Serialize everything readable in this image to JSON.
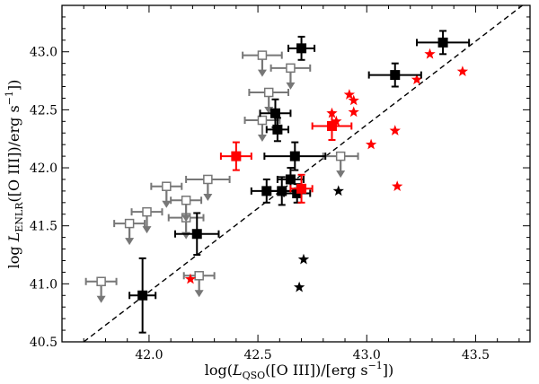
{
  "chart_data": {
    "type": "scatter",
    "title": "",
    "xlabel": {
      "prefix": "log(",
      "symbol": "L",
      "sub": "QSO",
      "mid": "([O III])/[erg s",
      "sup": "−1",
      "suffix": "])"
    },
    "ylabel": {
      "prefix": "log ",
      "symbol": "L",
      "sub": "ENLR",
      "mid": "([O III])/erg s",
      "sup": "−1",
      "suffix": "])"
    },
    "xlim": [
      41.6,
      43.75
    ],
    "ylim": [
      40.5,
      43.4
    ],
    "xticks": [
      42.0,
      42.5,
      43.0,
      43.5
    ],
    "xtick_labels": [
      "42.0",
      "42.5",
      "43.0",
      "43.5"
    ],
    "yticks": [
      40.5,
      41.0,
      41.5,
      42.0,
      42.5,
      43.0
    ],
    "ytick_labels": [
      "40.5",
      "41.0",
      "41.5",
      "42.0",
      "42.5",
      "43.0"
    ],
    "colors": {
      "detection": "#000000",
      "upper_limit": "#777777",
      "red": "#ff0000"
    },
    "one_to_one_line": {
      "style": "dashed",
      "x": [
        41.7,
        43.75
      ],
      "y": [
        40.5,
        43.45
      ]
    },
    "series": [
      {
        "name": "Detections (black squares)",
        "marker": "square-filled",
        "color": "#000000",
        "points": [
          {
            "x": 41.97,
            "y": 40.9,
            "xerr": 0.06,
            "yerr": 0.32
          },
          {
            "x": 42.22,
            "y": 41.43,
            "xerr": 0.1,
            "yerr": 0.18
          },
          {
            "x": 42.54,
            "y": 41.8,
            "xerr": 0.07,
            "yerr": 0.1
          },
          {
            "x": 42.61,
            "y": 41.8,
            "xerr": 0.06,
            "yerr": 0.12
          },
          {
            "x": 42.65,
            "y": 41.9,
            "xerr": 0.06,
            "yerr": 0.1
          },
          {
            "x": 42.67,
            "y": 42.1,
            "xerr": 0.14,
            "yerr": 0.12
          },
          {
            "x": 42.68,
            "y": 41.78,
            "xerr": 0.06,
            "yerr": 0.08
          },
          {
            "x": 42.58,
            "y": 42.47,
            "xerr": 0.07,
            "yerr": 0.12
          },
          {
            "x": 42.59,
            "y": 42.33,
            "xerr": 0.05,
            "yerr": 0.1
          },
          {
            "x": 42.7,
            "y": 43.03,
            "xerr": 0.06,
            "yerr": 0.1
          },
          {
            "x": 43.13,
            "y": 42.8,
            "xerr": 0.12,
            "yerr": 0.1
          },
          {
            "x": 43.35,
            "y": 43.08,
            "xerr": 0.12,
            "yerr": 0.1
          }
        ]
      },
      {
        "name": "Upper limits (open grey squares)",
        "marker": "square-open-arrow-down",
        "color": "#777777",
        "points": [
          {
            "x": 41.78,
            "y": 41.02,
            "xerr": 0.07
          },
          {
            "x": 41.91,
            "y": 41.52,
            "xerr": 0.07
          },
          {
            "x": 41.99,
            "y": 41.62,
            "xerr": 0.07
          },
          {
            "x": 42.08,
            "y": 41.84,
            "xerr": 0.07
          },
          {
            "x": 42.17,
            "y": 41.57,
            "xerr": 0.08
          },
          {
            "x": 42.17,
            "y": 41.72,
            "xerr": 0.07
          },
          {
            "x": 42.27,
            "y": 41.9,
            "xerr": 0.1
          },
          {
            "x": 42.23,
            "y": 41.07,
            "xerr": 0.07
          },
          {
            "x": 42.52,
            "y": 42.97,
            "xerr": 0.09
          },
          {
            "x": 42.55,
            "y": 42.65,
            "xerr": 0.09
          },
          {
            "x": 42.65,
            "y": 42.86,
            "xerr": 0.09
          },
          {
            "x": 42.52,
            "y": 42.41,
            "xerr": 0.08
          },
          {
            "x": 42.88,
            "y": 42.1,
            "xerr": 0.08
          }
        ]
      },
      {
        "name": "Red squares",
        "marker": "square-filled",
        "color": "#ff0000",
        "points": [
          {
            "x": 42.4,
            "y": 42.1,
            "xerr": 0.07,
            "yerr": 0.12
          },
          {
            "x": 42.84,
            "y": 42.36,
            "xerr": 0.09,
            "yerr": 0.12
          },
          {
            "x": 42.7,
            "y": 41.82,
            "xerr": 0.05,
            "yerr": 0.12
          }
        ]
      },
      {
        "name": "Red stars",
        "marker": "star",
        "color": "#ff0000",
        "points": [
          {
            "x": 42.19,
            "y": 41.04
          },
          {
            "x": 42.84,
            "y": 42.47
          },
          {
            "x": 42.86,
            "y": 42.4
          },
          {
            "x": 42.92,
            "y": 42.63
          },
          {
            "x": 42.94,
            "y": 42.58
          },
          {
            "x": 42.94,
            "y": 42.48
          },
          {
            "x": 43.02,
            "y": 42.2
          },
          {
            "x": 43.13,
            "y": 42.32
          },
          {
            "x": 43.14,
            "y": 41.84
          },
          {
            "x": 43.23,
            "y": 42.76
          },
          {
            "x": 43.29,
            "y": 42.98
          },
          {
            "x": 43.44,
            "y": 42.83
          }
        ]
      },
      {
        "name": "Black stars",
        "marker": "star",
        "color": "#000000",
        "points": [
          {
            "x": 42.87,
            "y": 41.8
          },
          {
            "x": 42.71,
            "y": 41.21
          },
          {
            "x": 42.69,
            "y": 40.97
          }
        ]
      }
    ]
  }
}
